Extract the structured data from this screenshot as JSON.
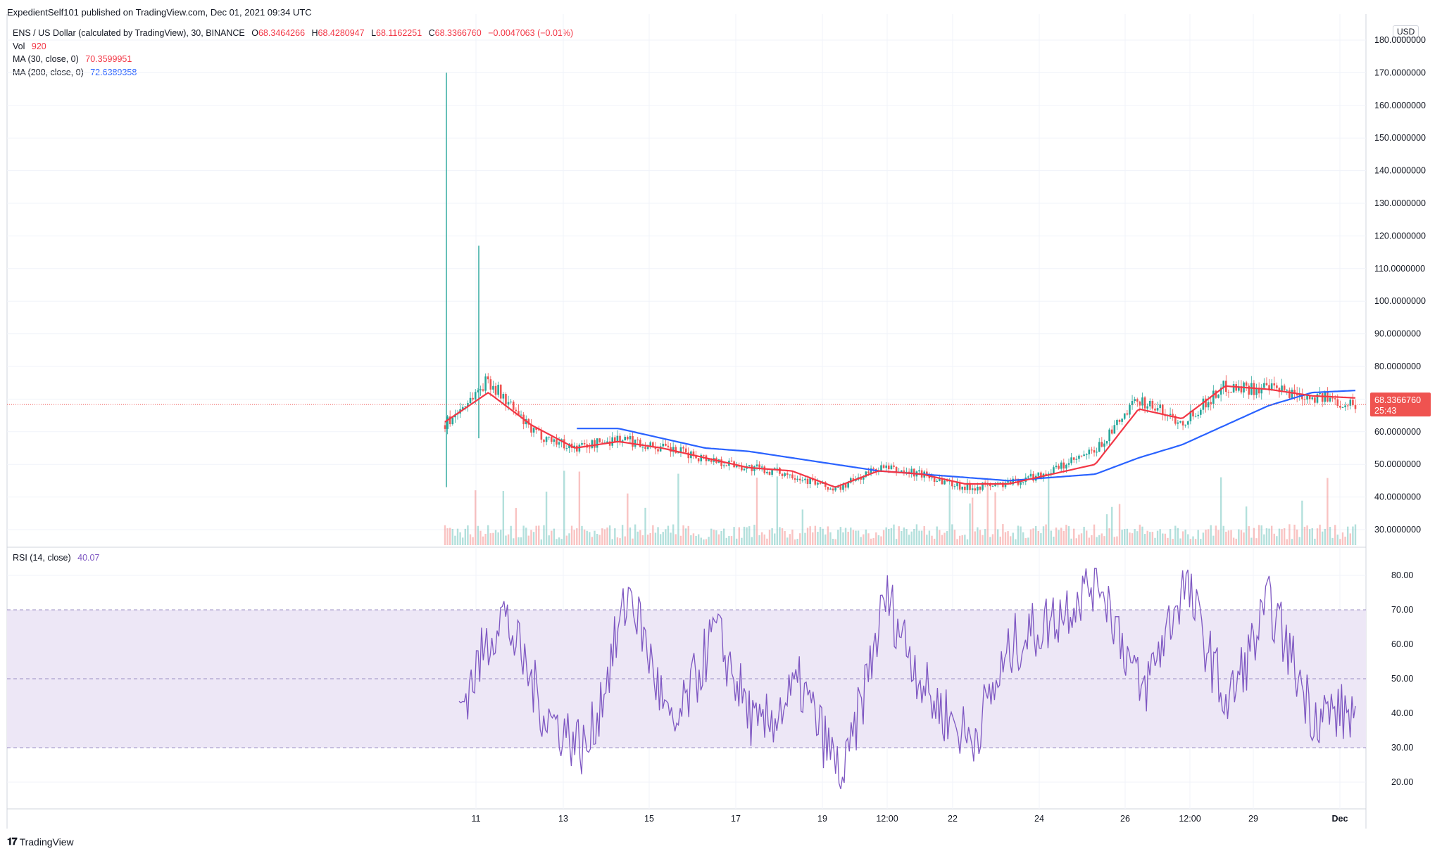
{
  "header": {
    "publisher": "ExpedientSelf101 published on TradingView.com, Dec 01, 2021 09:34 UTC"
  },
  "legend": {
    "symbol": "ENS / US Dollar (calculated by TradingView), 30, BINANCE",
    "o_label": "O",
    "o_value": "68.3464266",
    "h_label": "H",
    "h_value": "68.4280947",
    "l_label": "L",
    "l_value": "68.1162251",
    "c_label": "C",
    "c_value": "68.3366760",
    "change": "−0.0047063 (−0.01%)",
    "vol_label": "Vol",
    "vol_value": "920",
    "ma30_label": "MA (30, close, 0)",
    "ma30_value": "70.3599951",
    "ma200_label": "MA (200, close, 0)",
    "ma200_value": "72.6389358"
  },
  "rsi_legend": {
    "label": "RSI (14, close)",
    "value": "40.07"
  },
  "currency": "USD",
  "last_price": {
    "value": "68.3366760",
    "countdown": "25:43"
  },
  "footer": {
    "brand": "TradingView"
  },
  "colors": {
    "up": "#26a69a",
    "down": "#ef5350",
    "ma30": "#f23645",
    "ma200": "#2962ff",
    "rsi": "#7e57c2",
    "rsi_band": "#ede7f6"
  },
  "chart_data": [
    {
      "type": "candlestick",
      "title": "ENS / US Dollar, 30, BINANCE",
      "ylim": [
        25,
        185
      ],
      "y_ticks": [
        "180.0000000",
        "170.0000000",
        "160.0000000",
        "150.0000000",
        "140.0000000",
        "130.0000000",
        "120.0000000",
        "110.0000000",
        "100.0000000",
        "90.0000000",
        "80.0000000",
        "70.0000000",
        "60.0000000",
        "50.0000000",
        "40.0000000",
        "30.0000000"
      ],
      "x_ticks": [
        "11",
        "13",
        "15",
        "17",
        "19",
        "12:00",
        "22",
        "24",
        "26",
        "12:00",
        "29",
        "Dec"
      ],
      "x": [
        "Nov 10",
        "Nov 11",
        "Nov 12",
        "Nov 13",
        "Nov 14",
        "Nov 15",
        "Nov 16",
        "Nov 17",
        "Nov 18",
        "Nov 19",
        "Nov 20",
        "Nov 21",
        "Nov 22",
        "Nov 23",
        "Nov 24",
        "Nov 25",
        "Nov 26",
        "Nov 27",
        "Nov 28",
        "Nov 29",
        "Nov 30",
        "Dec 1"
      ],
      "series": [
        {
          "name": "Price",
          "values": [
            62,
            76,
            60,
            55,
            58,
            55,
            52,
            49,
            47,
            42,
            49,
            47,
            43,
            44,
            48,
            54,
            70,
            63,
            74,
            73,
            71,
            68.34
          ]
        },
        {
          "name": "MA (30, close, 0)",
          "values": [
            63,
            72,
            62,
            55,
            57,
            55,
            52,
            49,
            48,
            43,
            48,
            47,
            44,
            44,
            47,
            50,
            67,
            64,
            74,
            73,
            71,
            70.36
          ]
        },
        {
          "name": "MA (200, close, 0)",
          "values": [
            null,
            null,
            null,
            null,
            61,
            58,
            55,
            54,
            52,
            50,
            48,
            47,
            46,
            45,
            46,
            47,
            52,
            56,
            62,
            68,
            72,
            72.64
          ]
        }
      ],
      "annotations": [
        {
          "label": "spike",
          "x": "Nov 10",
          "high": 170,
          "low": 43
        },
        {
          "label": "spike",
          "x": "Nov 11",
          "high": 117,
          "low": 58
        }
      ]
    },
    {
      "type": "line",
      "title": "RSI (14, close)",
      "ylim": [
        16,
        84
      ],
      "y_ticks": [
        "80.00",
        "70.00",
        "60.00",
        "50.00",
        "40.00",
        "30.00",
        "20.00"
      ],
      "band": [
        30,
        70
      ],
      "levels": [
        70,
        50,
        30
      ],
      "x": [
        "Nov 10",
        "Nov 11",
        "Nov 12",
        "Nov 13",
        "Nov 14",
        "Nov 15",
        "Nov 16",
        "Nov 17",
        "Nov 18",
        "Nov 19",
        "Nov 20",
        "Nov 21",
        "Nov 22",
        "Nov 23",
        "Nov 24",
        "Nov 25",
        "Nov 26",
        "Nov 27",
        "Nov 28",
        "Nov 29",
        "Nov 30",
        "Dec 1"
      ],
      "series": [
        {
          "name": "RSI",
          "values": [
            41,
            70,
            40,
            29,
            76,
            33,
            64,
            34,
            48,
            20,
            74,
            45,
            32,
            60,
            68,
            80,
            45,
            78,
            42,
            72,
            40,
            40.07
          ]
        }
      ]
    }
  ]
}
